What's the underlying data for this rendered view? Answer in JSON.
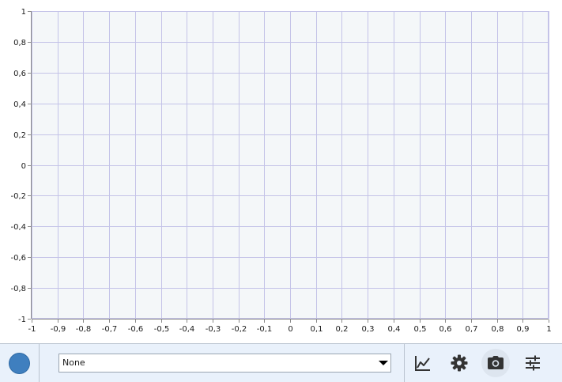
{
  "chart_data": {
    "type": "line",
    "series": [],
    "xlim": [
      -1,
      1
    ],
    "ylim": [
      -1,
      1
    ],
    "x_ticks": [
      -1,
      -0.9,
      -0.8,
      -0.7,
      -0.6,
      -0.5,
      -0.4,
      -0.3,
      -0.2,
      -0.1,
      0,
      0.1,
      0.2,
      0.3,
      0.4,
      0.5,
      0.6,
      0.7,
      0.8,
      0.9,
      1
    ],
    "x_tick_labels": [
      "-1",
      "-0,9",
      "-0,8",
      "-0,7",
      "-0,6",
      "-0,5",
      "-0,4",
      "-0,3",
      "-0,2",
      "-0,1",
      "0",
      "0,1",
      "0,2",
      "0,3",
      "0,4",
      "0,5",
      "0,6",
      "0,7",
      "0,8",
      "0,9",
      "1"
    ],
    "y_ticks": [
      1,
      0.8,
      0.6,
      0.4,
      0.2,
      0,
      -0.2,
      -0.4,
      -0.6,
      -0.8,
      -1
    ],
    "y_tick_labels": [
      "1",
      "0,8",
      "0,6",
      "0,4",
      "0,2",
      "0",
      "-0,2",
      "-0,4",
      "-0,6",
      "-0,8",
      "-1"
    ],
    "grid": true,
    "title": "",
    "xlabel": "",
    "ylabel": ""
  },
  "colors": {
    "plot_background": "#f4f7f9",
    "grid": "#c4c3e8",
    "axis": "#8a8a8a",
    "series_color": "#3f7fbf",
    "bottom_bar": "#e9f1fb"
  },
  "controls": {
    "series_color_swatch": "#3f7fbf",
    "series_select_value": "None",
    "toolbar": {
      "chart_icon": "line-chart-icon",
      "settings_icon": "gear-icon",
      "screenshot_icon": "camera-icon",
      "adjust_icon": "tune-sliders-icon"
    }
  }
}
